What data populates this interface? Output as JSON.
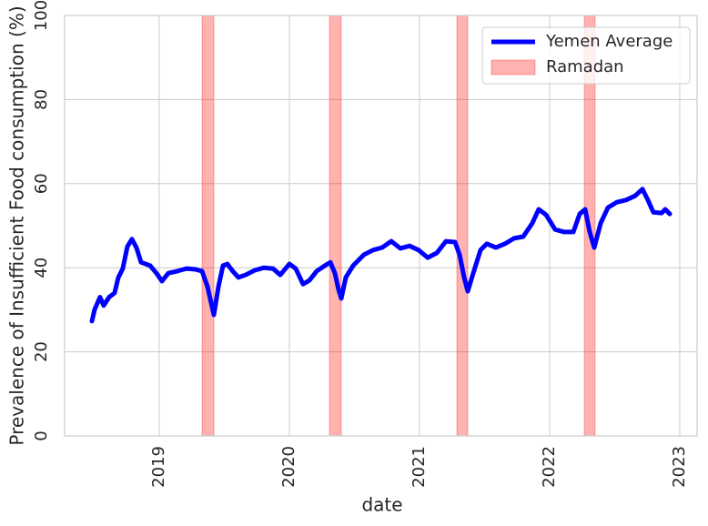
{
  "chart_data": {
    "type": "line",
    "xlabel": "date",
    "ylabel": "Prevalence of Insufficient Food consumption (%)",
    "x": [
      2018.483,
      2018.503,
      2018.545,
      2018.573,
      2018.615,
      2018.657,
      2018.685,
      2018.72,
      2018.755,
      2018.79,
      2018.825,
      2018.86,
      2018.93,
      2018.979,
      2019.021,
      2019.07,
      2019.14,
      2019.21,
      2019.28,
      2019.329,
      2019.371,
      2019.399,
      2019.42,
      2019.455,
      2019.49,
      2019.524,
      2019.559,
      2019.608,
      2019.664,
      2019.734,
      2019.804,
      2019.874,
      2019.93,
      2020,
      2020.049,
      2020.105,
      2020.154,
      2020.21,
      2020.273,
      2020.315,
      2020.35,
      2020.378,
      2020.399,
      2020.434,
      2020.49,
      2020.573,
      2020.643,
      2020.713,
      2020.783,
      2020.853,
      2020.923,
      2020.993,
      2021.063,
      2021.133,
      2021.203,
      2021.273,
      2021.308,
      2021.343,
      2021.371,
      2021.413,
      2021.469,
      2021.517,
      2021.587,
      2021.657,
      2021.727,
      2021.797,
      2021.867,
      2021.916,
      2021.972,
      2022.042,
      2022.112,
      2022.182,
      2022.231,
      2022.273,
      2022.308,
      2022.343,
      2022.392,
      2022.448,
      2022.517,
      2022.587,
      2022.657,
      2022.713,
      2022.755,
      2022.797,
      2022.86,
      2022.888,
      2022.923
    ],
    "series": [
      {
        "name": "Yemen Average",
        "color": "#0000ff",
        "values": [
          27.3,
          30,
          33,
          31,
          33,
          34,
          37.6,
          39.8,
          45,
          46.8,
          44.8,
          41.3,
          40.5,
          38.7,
          36.8,
          38.7,
          39.2,
          39.8,
          39.6,
          39.2,
          35.5,
          31.6,
          28.8,
          35.5,
          40.5,
          40.9,
          39.4,
          37.7,
          38.3,
          39.4,
          40,
          39.8,
          38.3,
          40.9,
          39.8,
          36.1,
          37,
          39.2,
          40.5,
          41.3,
          38.7,
          34.8,
          32.7,
          37.7,
          40.5,
          43.1,
          44.2,
          44.8,
          46.3,
          44.6,
          45.2,
          44.2,
          42.4,
          43.5,
          46.3,
          46.1,
          43.1,
          37.7,
          34.4,
          38.7,
          44.2,
          45.7,
          44.8,
          45.7,
          47,
          47.4,
          50.6,
          53.9,
          52.6,
          49.1,
          48.5,
          48.5,
          52.8,
          53.9,
          48.5,
          44.8,
          50.6,
          54.3,
          55.6,
          56.1,
          57.1,
          58.7,
          56.1,
          53.2,
          53,
          53.9,
          52.8
        ]
      }
    ],
    "spans": {
      "name": "Ramadan",
      "color": "#ff0000",
      "ranges": [
        [
          2019.329,
          2019.42
        ],
        [
          2020.308,
          2020.399
        ],
        [
          2021.287,
          2021.371
        ],
        [
          2022.266,
          2022.35
        ]
      ]
    },
    "xlim": [
      2018.273,
      2023.133
    ],
    "ylim": [
      0,
      100
    ],
    "xticks": [
      2019,
      2020,
      2021,
      2022,
      2023
    ],
    "yticks": [
      0,
      20,
      40,
      60,
      80,
      100
    ],
    "grid": true,
    "legend": "upper right"
  }
}
